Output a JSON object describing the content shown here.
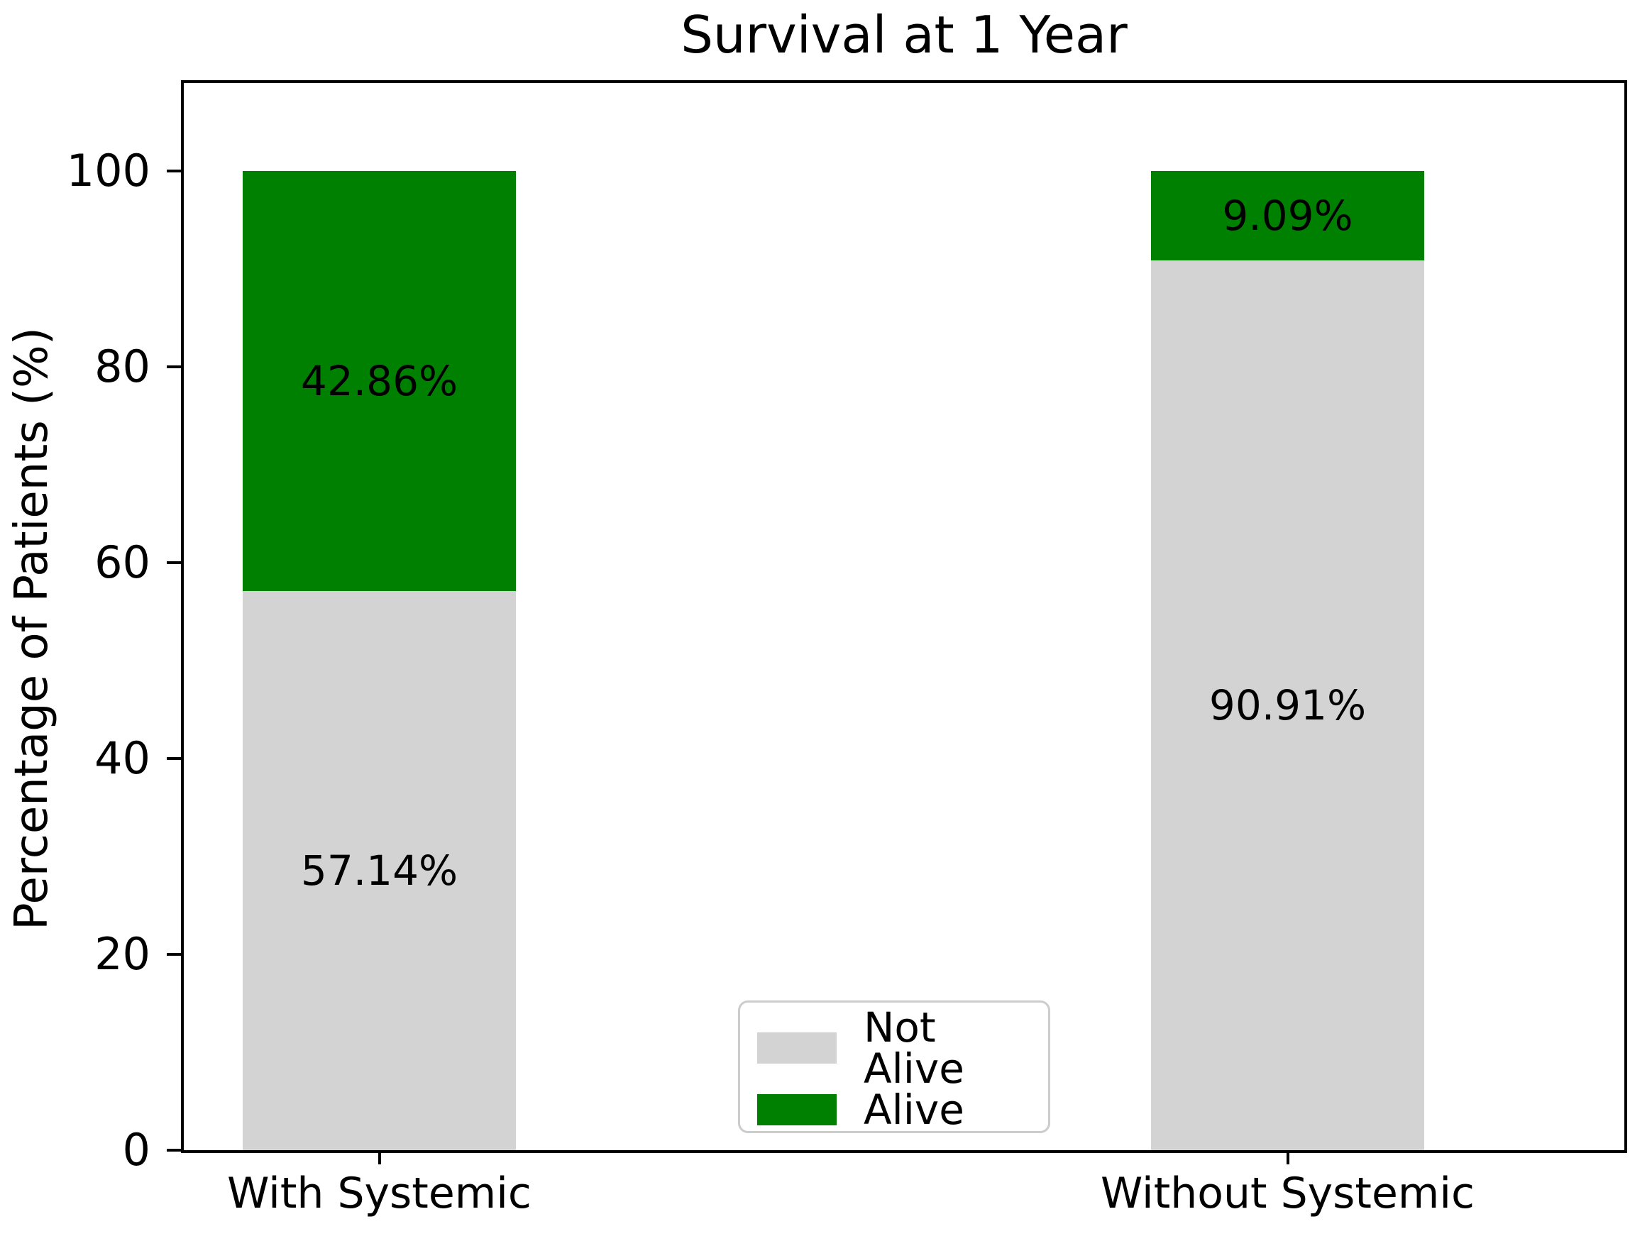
{
  "figure": {
    "background": "#ffffff",
    "axis_color": "#000000",
    "text_color": "#000000"
  },
  "chart_data": {
    "type": "bar",
    "stacked": true,
    "title": "Survival at 1 Year",
    "ylabel": "Percentage of Patients (%)",
    "xlabel": "",
    "categories": [
      "With Systemic",
      "Without Systemic"
    ],
    "series": [
      {
        "name": "Not Alive",
        "color": "#d3d3d3",
        "values": [
          57.14,
          90.91
        ],
        "value_labels": [
          "57.14%",
          "90.91%"
        ]
      },
      {
        "name": "Alive",
        "color": "#008000",
        "values": [
          42.86,
          9.09
        ],
        "value_labels": [
          "42.86%",
          "9.09%"
        ]
      }
    ],
    "yticks": [
      0,
      20,
      40,
      60,
      80,
      100
    ],
    "ylim": [
      0,
      109
    ],
    "grid": false,
    "legend": {
      "position": "lower center",
      "items": [
        "Not Alive",
        "Alive"
      ]
    }
  }
}
